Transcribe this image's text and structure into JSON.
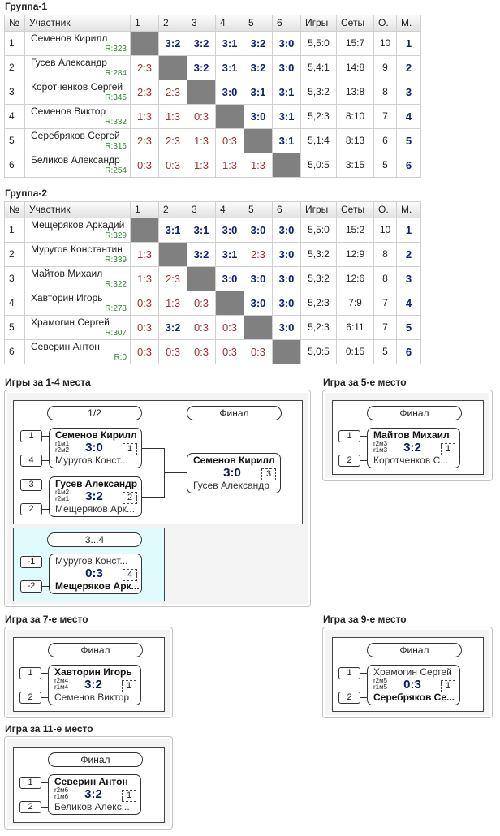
{
  "groups": [
    {
      "title": "Группа-1",
      "headers": [
        "№",
        "Участник",
        "1",
        "2",
        "3",
        "4",
        "5",
        "6",
        "Игры",
        "Сеты",
        "О.",
        "М."
      ],
      "rows": [
        {
          "num": 1,
          "name": "Семенов Кирилл",
          "rating": "R:323",
          "results": [
            null,
            "3:2",
            "3:2",
            "3:1",
            "3:2",
            "3:0"
          ],
          "games": "5,5:0",
          "sets": "15:7",
          "points": 10,
          "place": 1
        },
        {
          "num": 2,
          "name": "Гусев Александр",
          "rating": "R:284",
          "results": [
            "2:3",
            null,
            "3:2",
            "3:1",
            "3:2",
            "3:0"
          ],
          "games": "5,4:1",
          "sets": "14:8",
          "points": 9,
          "place": 2
        },
        {
          "num": 3,
          "name": "Коротченков Сергей",
          "rating": "R:345",
          "results": [
            "2:3",
            "2:3",
            null,
            "3:0",
            "3:1",
            "3:1"
          ],
          "games": "5,3:2",
          "sets": "13:8",
          "points": 8,
          "place": 3
        },
        {
          "num": 4,
          "name": "Семенов Виктор",
          "rating": "R:332",
          "results": [
            "1:3",
            "1:3",
            "0:3",
            null,
            "3:0",
            "3:1"
          ],
          "games": "5,2:3",
          "sets": "8:10",
          "points": 7,
          "place": 4
        },
        {
          "num": 5,
          "name": "Серебряков Сергей",
          "rating": "R:316",
          "results": [
            "2:3",
            "2:3",
            "1:3",
            "0:3",
            null,
            "3:1"
          ],
          "games": "5,1:4",
          "sets": "8:13",
          "points": 6,
          "place": 5
        },
        {
          "num": 6,
          "name": "Беликов Александр",
          "rating": "R:254",
          "results": [
            "0:3",
            "0:3",
            "1:3",
            "1:3",
            "1:3",
            null
          ],
          "games": "5,0:5",
          "sets": "3:15",
          "points": 5,
          "place": 6
        }
      ]
    },
    {
      "title": "Группа-2",
      "headers": [
        "№",
        "Участник",
        "1",
        "2",
        "3",
        "4",
        "5",
        "6",
        "Игры",
        "Сеты",
        "О.",
        "М."
      ],
      "rows": [
        {
          "num": 1,
          "name": "Мещеряков Аркадий",
          "rating": "R:329",
          "results": [
            null,
            "3:1",
            "3:1",
            "3:0",
            "3:0",
            "3:0"
          ],
          "games": "5,5:0",
          "sets": "15:2",
          "points": 10,
          "place": 1
        },
        {
          "num": 2,
          "name": "Муругов Константин",
          "rating": "R:339",
          "results": [
            "1:3",
            null,
            "3:2",
            "3:1",
            "2:3",
            "3:0"
          ],
          "games": "5,3:2",
          "sets": "12:9",
          "points": 8,
          "place": 2
        },
        {
          "num": 3,
          "name": "Майтов Михаил",
          "rating": "R:322",
          "results": [
            "1:3",
            "2:3",
            null,
            "3:0",
            "3:0",
            "3:0"
          ],
          "games": "5,3:2",
          "sets": "12:6",
          "points": 8,
          "place": 3
        },
        {
          "num": 4,
          "name": "Хавторин Игорь",
          "rating": "R:273",
          "results": [
            "0:3",
            "1:3",
            "0:3",
            null,
            "3:0",
            "3:0"
          ],
          "games": "5,2:3",
          "sets": "7:9",
          "points": 7,
          "place": 4
        },
        {
          "num": 5,
          "name": "Храмогин Сергей",
          "rating": "R:307",
          "results": [
            "0:3",
            "3:2",
            "0:3",
            "0:3",
            null,
            "3:0"
          ],
          "games": "5,2:3",
          "sets": "6:11",
          "points": 7,
          "place": 5
        },
        {
          "num": 6,
          "name": "Северин Антон",
          "rating": "R:0",
          "results": [
            "0:3",
            "0:3",
            "0:3",
            "0:3",
            "0:3",
            null
          ],
          "games": "5,0:5",
          "sets": "0:15",
          "points": 5,
          "place": 6
        }
      ]
    }
  ],
  "brackets": [
    {
      "title": "Игры за 1-4 места",
      "labels": [
        "1/2",
        "Финал"
      ],
      "matches": [
        {
          "seeds": [
            "1",
            "4"
          ],
          "top": "Семенов Кирилл",
          "bottom": "Муругов Конст...",
          "refs": [
            "r1м1",
            "r2м2"
          ],
          "score": "3:0",
          "number": "1",
          "winner": "top"
        },
        {
          "seeds": [
            "3",
            "2"
          ],
          "top": "Гусев Александр",
          "bottom": "Мещеряков Арк...",
          "refs": [
            "r1м2",
            "r2м1"
          ],
          "score": "3:2",
          "number": "2",
          "winner": "top"
        }
      ],
      "final": {
        "top": "Семенов Кирилл",
        "bottom": "Гусев Александр",
        "score": "3:0",
        "number": "3",
        "winner": "top"
      },
      "third": {
        "label": "3...4",
        "match": {
          "seeds": [
            "-1",
            "-2"
          ],
          "top": "Муругов Конст...",
          "bottom": "Мещеряков Арк...",
          "score": "0:3",
          "number": "4",
          "winner": "bottom"
        }
      }
    },
    {
      "title": "Игра за 5-е место",
      "labels": [
        "Финал"
      ],
      "matches": [
        {
          "seeds": [
            "1",
            "2"
          ],
          "top": "Майтов Михаил",
          "bottom": "Коротченков С...",
          "refs": [
            "r2м3",
            "r1м3"
          ],
          "score": "3:2",
          "number": "1",
          "winner": "top"
        }
      ]
    },
    {
      "title": "Игра за 7-е место",
      "labels": [
        "Финал"
      ],
      "matches": [
        {
          "seeds": [
            "1",
            "2"
          ],
          "top": "Хавторин Игорь",
          "bottom": "Семенов Виктор",
          "refs": [
            "r2м4",
            "r1м4"
          ],
          "score": "3:2",
          "number": "1",
          "winner": "top"
        }
      ]
    },
    {
      "title": "Игра за 9-е место",
      "labels": [
        "Финал"
      ],
      "matches": [
        {
          "seeds": [
            "1",
            "2"
          ],
          "top": "Храмогин Сергей",
          "bottom": "Серебряков Се...",
          "refs": [
            "r2м5",
            "r1м5"
          ],
          "score": "0:3",
          "number": "1",
          "winner": "bottom"
        }
      ]
    },
    {
      "title": "Игра за 11-е место",
      "labels": [
        "Финал"
      ],
      "matches": [
        {
          "seeds": [
            "1",
            "2"
          ],
          "top": "Северин Антон",
          "bottom": "Беликов Алекс...",
          "refs": [
            "r2м6",
            "r1м6"
          ],
          "score": "3:2",
          "number": "1",
          "winner": "top"
        }
      ]
    }
  ]
}
